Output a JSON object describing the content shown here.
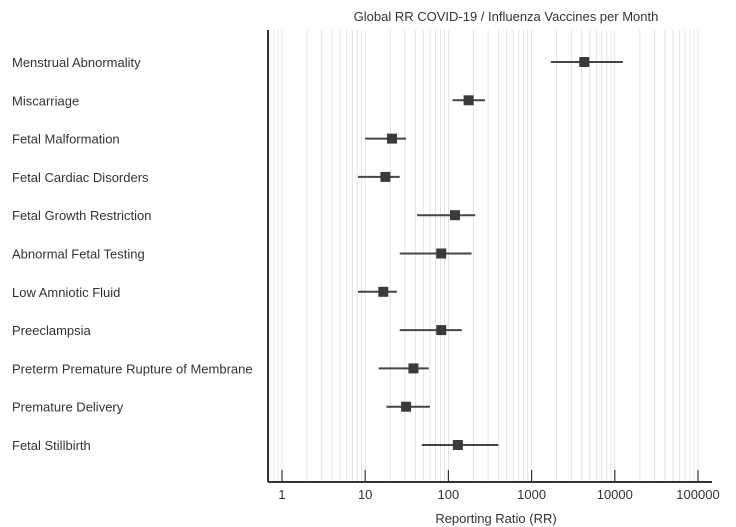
{
  "chart_data": {
    "type": "scatter",
    "title": "Global RR COVID-19 / Influenza Vaccines per Month",
    "xlabel": "Reporting Ratio (RR)",
    "ylabel": "",
    "xscale": "log",
    "xlim": [
      0.6,
      120000
    ],
    "xticks": [
      1,
      10,
      100,
      1000,
      10000,
      100000
    ],
    "xtick_labels": [
      "1",
      "10",
      "100",
      "1000",
      "10000",
      "100000"
    ],
    "grid": "vertical",
    "categories": [
      "Menstrual Abnormality",
      "Miscarriage",
      "Fetal Malformation",
      "Fetal Cardiac Disorders",
      "Fetal Growth Restriction",
      "Abnormal Fetal Testing",
      "Low Amniotic Fluid",
      "Preeclampsia",
      "Preterm Premature Rupture of Membrane",
      "Premature Delivery",
      "Fetal Stillbirth"
    ],
    "values": [
      4300,
      175,
      21,
      17.5,
      120,
      82,
      16.5,
      82,
      38,
      31,
      130
    ],
    "ci_low": [
      1700,
      112,
      10,
      8.2,
      42,
      26,
      8.2,
      26,
      14.5,
      18,
      48
    ],
    "ci_high": [
      12500,
      275,
      31,
      26,
      210,
      190,
      24,
      145,
      58,
      60,
      400
    ],
    "colors": {
      "marker": "#3a3a3a",
      "ci": "#444444",
      "grid": "#dddddd",
      "axis": "#333333"
    }
  }
}
